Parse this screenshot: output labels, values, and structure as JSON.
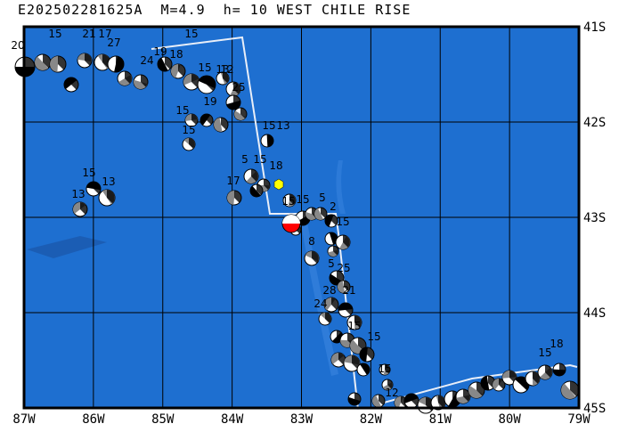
{
  "header": {
    "title": "E202502281625A  M=4.9  h= 10 WEST CHILE RISE"
  },
  "map": {
    "lon_range": [
      -87,
      -79
    ],
    "lat_range": [
      -45,
      -41
    ],
    "x_tick_labels": [
      "87W",
      "86W",
      "85W",
      "84W",
      "83W",
      "82W",
      "81W",
      "80W",
      "79W"
    ],
    "y_tick_labels": [
      "41S",
      "42S",
      "43S",
      "44S",
      "45S"
    ],
    "colors": {
      "ocean": "#1e6fd0",
      "trench": "#1a55a8",
      "outline": "#e8eef8",
      "target": "#ff0000",
      "epicenter": "#ffff00"
    },
    "depth_labels": [
      "20",
      "15",
      "21",
      "17",
      "27",
      "24",
      "19",
      "18",
      "15",
      "15",
      "13",
      "25",
      "12",
      "19",
      "15",
      "15",
      "15",
      "13",
      "5",
      "15",
      "18",
      "17",
      "15",
      "13",
      "13",
      "15",
      "15",
      "5",
      "2",
      "15",
      "8",
      "5",
      "25",
      "28",
      "21",
      "24",
      "15",
      "15",
      "15",
      "12",
      "18",
      "15"
    ]
  }
}
